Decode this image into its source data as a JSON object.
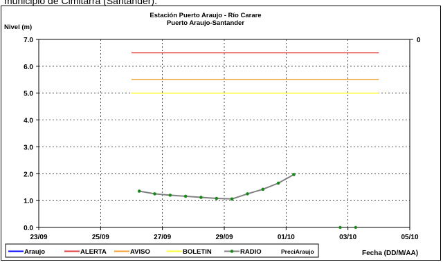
{
  "caption": "municipio de Cimitarra (Santander).",
  "chart_data": {
    "type": "line",
    "title": "Estación Puerto Araujo - Río Carare",
    "subtitle": "Puerto Araujo-Santander",
    "ylabel": "Nivel (m)",
    "xlabel": "Fecha (DD/M/AA)",
    "ylim": [
      0,
      7
    ],
    "yticks": [
      "0.0",
      "1.0",
      "2.0",
      "3.0",
      "4.0",
      "5.0",
      "6.0",
      "7.0"
    ],
    "y2tick": "0",
    "xlim": [
      "2010-09-23",
      "2010-10-05"
    ],
    "xticks": [
      "23/09",
      "25/09",
      "27/09",
      "29/09",
      "01/10",
      "03/10",
      "05/10"
    ],
    "grid": true,
    "legend_position": "bottom",
    "series": [
      {
        "name": "Araujo",
        "color": "#0000ff",
        "values": []
      },
      {
        "name": "ALERTA",
        "color": "#e23b3b",
        "x": [
          "2010-09-26",
          "2010-10-04"
        ],
        "values": [
          6.5,
          6.5
        ]
      },
      {
        "name": "AVISO",
        "color": "#f0a030",
        "x": [
          "2010-09-26",
          "2010-10-04"
        ],
        "values": [
          5.5,
          5.5
        ]
      },
      {
        "name": "BOLETIN",
        "color": "#ffff33",
        "x": [
          "2010-09-26",
          "2010-10-04"
        ],
        "values": [
          5.0,
          5.0
        ]
      },
      {
        "name": "RADIO",
        "color": "#808080",
        "marker_color": "#1a8a1a",
        "x": [
          "2010-09-26 06:00",
          "2010-09-26 18:00",
          "2010-09-27 06:00",
          "2010-09-27 18:00",
          "2010-09-28 06:00",
          "2010-09-28 18:00",
          "2010-09-29 06:00",
          "2010-09-29 18:00",
          "2010-09-30 06:00",
          "2010-09-30 18:00",
          "2010-10-01 06:00"
        ],
        "values": [
          1.35,
          1.25,
          1.2,
          1.16,
          1.12,
          1.08,
          1.06,
          1.25,
          1.42,
          1.65,
          1.97
        ]
      },
      {
        "name": "PreciAraujo",
        "color": "#1a8a1a",
        "x": [
          "2010-10-02 18:00",
          "2010-10-03 06:00"
        ],
        "values": [
          0,
          0
        ]
      }
    ]
  }
}
